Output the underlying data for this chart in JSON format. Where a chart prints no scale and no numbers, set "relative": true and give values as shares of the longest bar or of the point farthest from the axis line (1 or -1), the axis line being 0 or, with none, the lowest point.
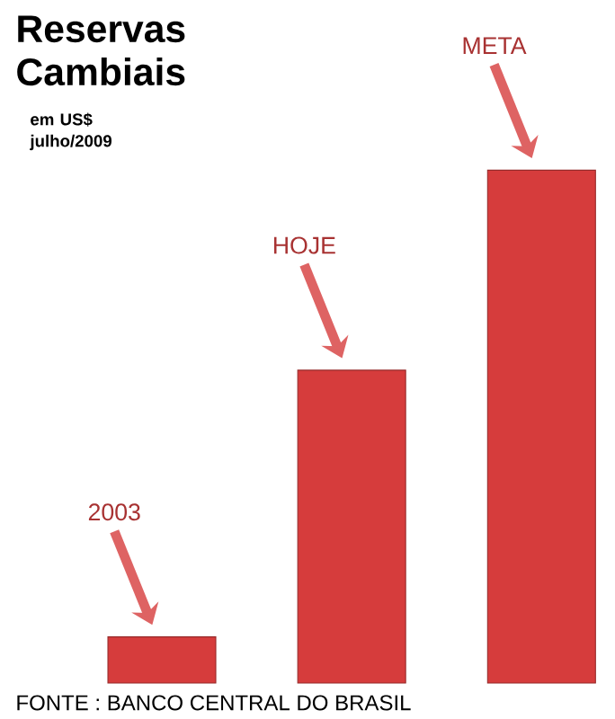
{
  "chart_data": {
    "type": "bar",
    "title": "Reservas Cambiais",
    "subtitle": "em US$ julho/2009",
    "categories": [
      null,
      null,
      null
    ],
    "values": [
      0.09,
      0.61,
      1
    ],
    "color": "#d63c3c",
    "relative": true,
    "annotations": [
      "2003",
      "HOJE",
      "META",
      "FONTE : BANCO CENTRAL DO BRASIL"
    ]
  }
}
